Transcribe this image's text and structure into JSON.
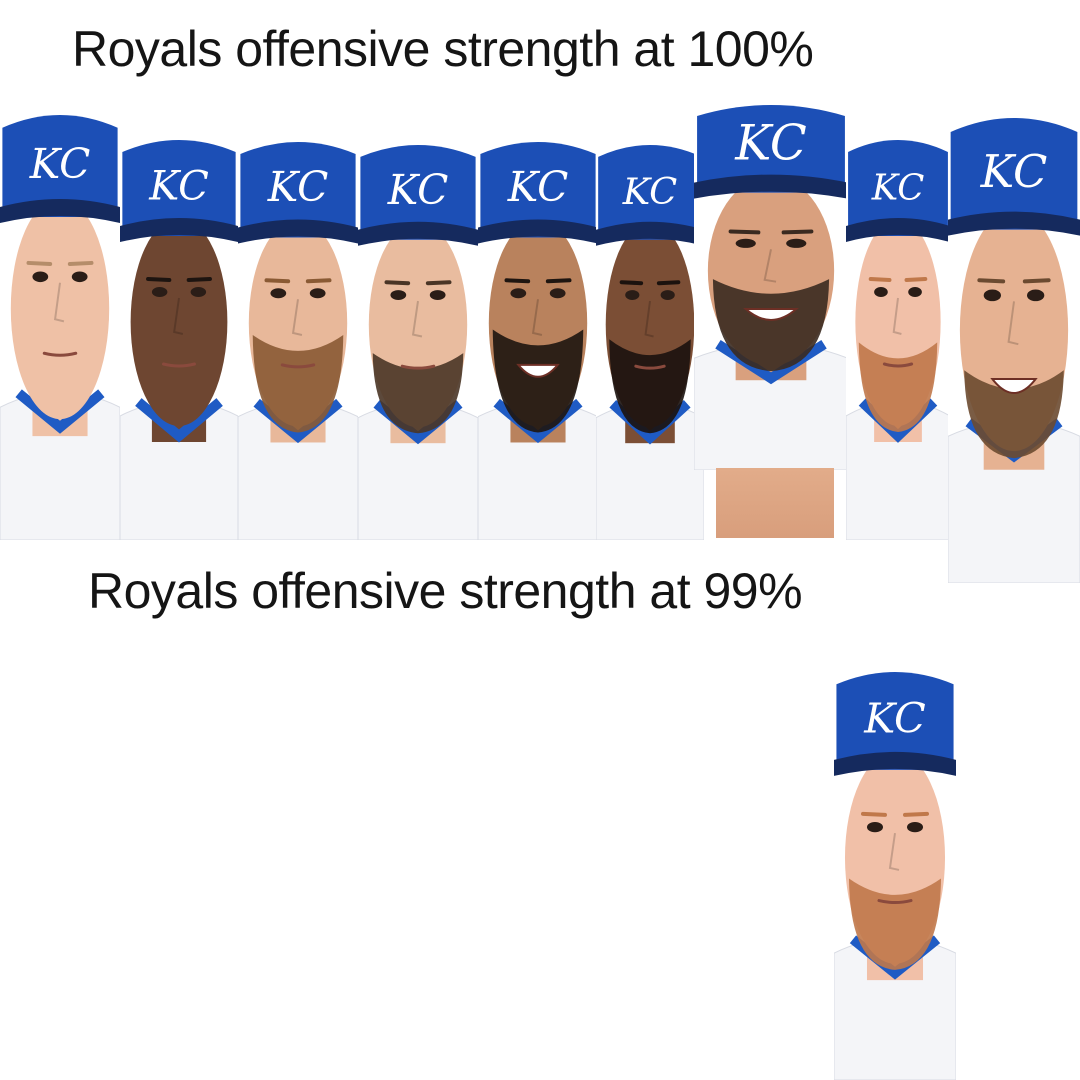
{
  "meme": {
    "top_caption": "Royals offensive strength at 100%",
    "bottom_caption": "Royals offensive strength at 99%",
    "cap_logo_text": "KC",
    "colors": {
      "cap_blue": "#1c4fb6",
      "cap_dark": "#152a5e",
      "jersey": "#f4f5f8",
      "jersey_trim": "#1f5bc4",
      "background": "#ffffff"
    },
    "top_row_player_count": 9,
    "bottom_row_player_count": 1
  }
}
